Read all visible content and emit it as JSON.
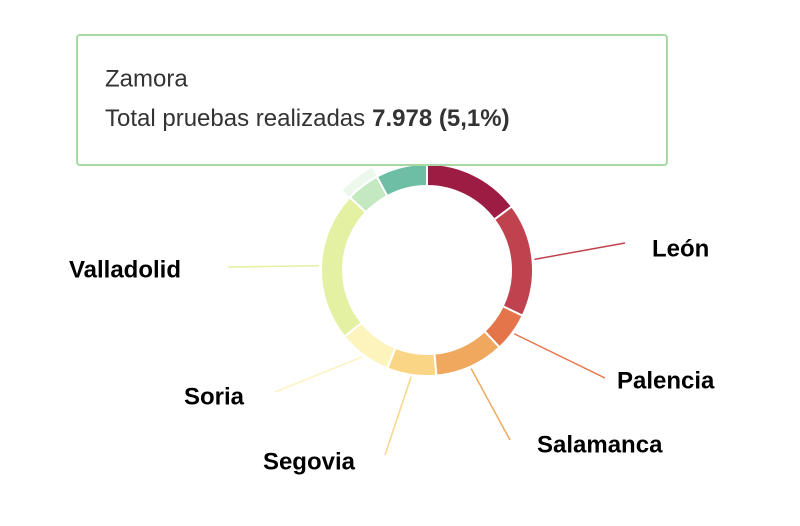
{
  "chart_data": {
    "type": "donut",
    "categories": [
      null,
      "León",
      "Palencia",
      "Salamanca",
      "Segovia",
      "Soria",
      "Valladolid",
      "Zamora",
      null
    ],
    "series": [
      {
        "name": "Total pruebas realizadas",
        "values": [
          23000,
          27000,
          9200,
          16500,
          11700,
          12600,
          35600,
          7978,
          12200
        ],
        "colors": [
          "#9c1c43",
          "#c1424f",
          "#e4744a",
          "#f0a85e",
          "#f9d585",
          "#fcf3bd",
          "#e4f0a2",
          "#c4e8c0",
          "#6dbea4"
        ]
      }
    ],
    "tooltip": {
      "category_index": 7,
      "value_label": "7.978 (5,1%)"
    }
  }
}
